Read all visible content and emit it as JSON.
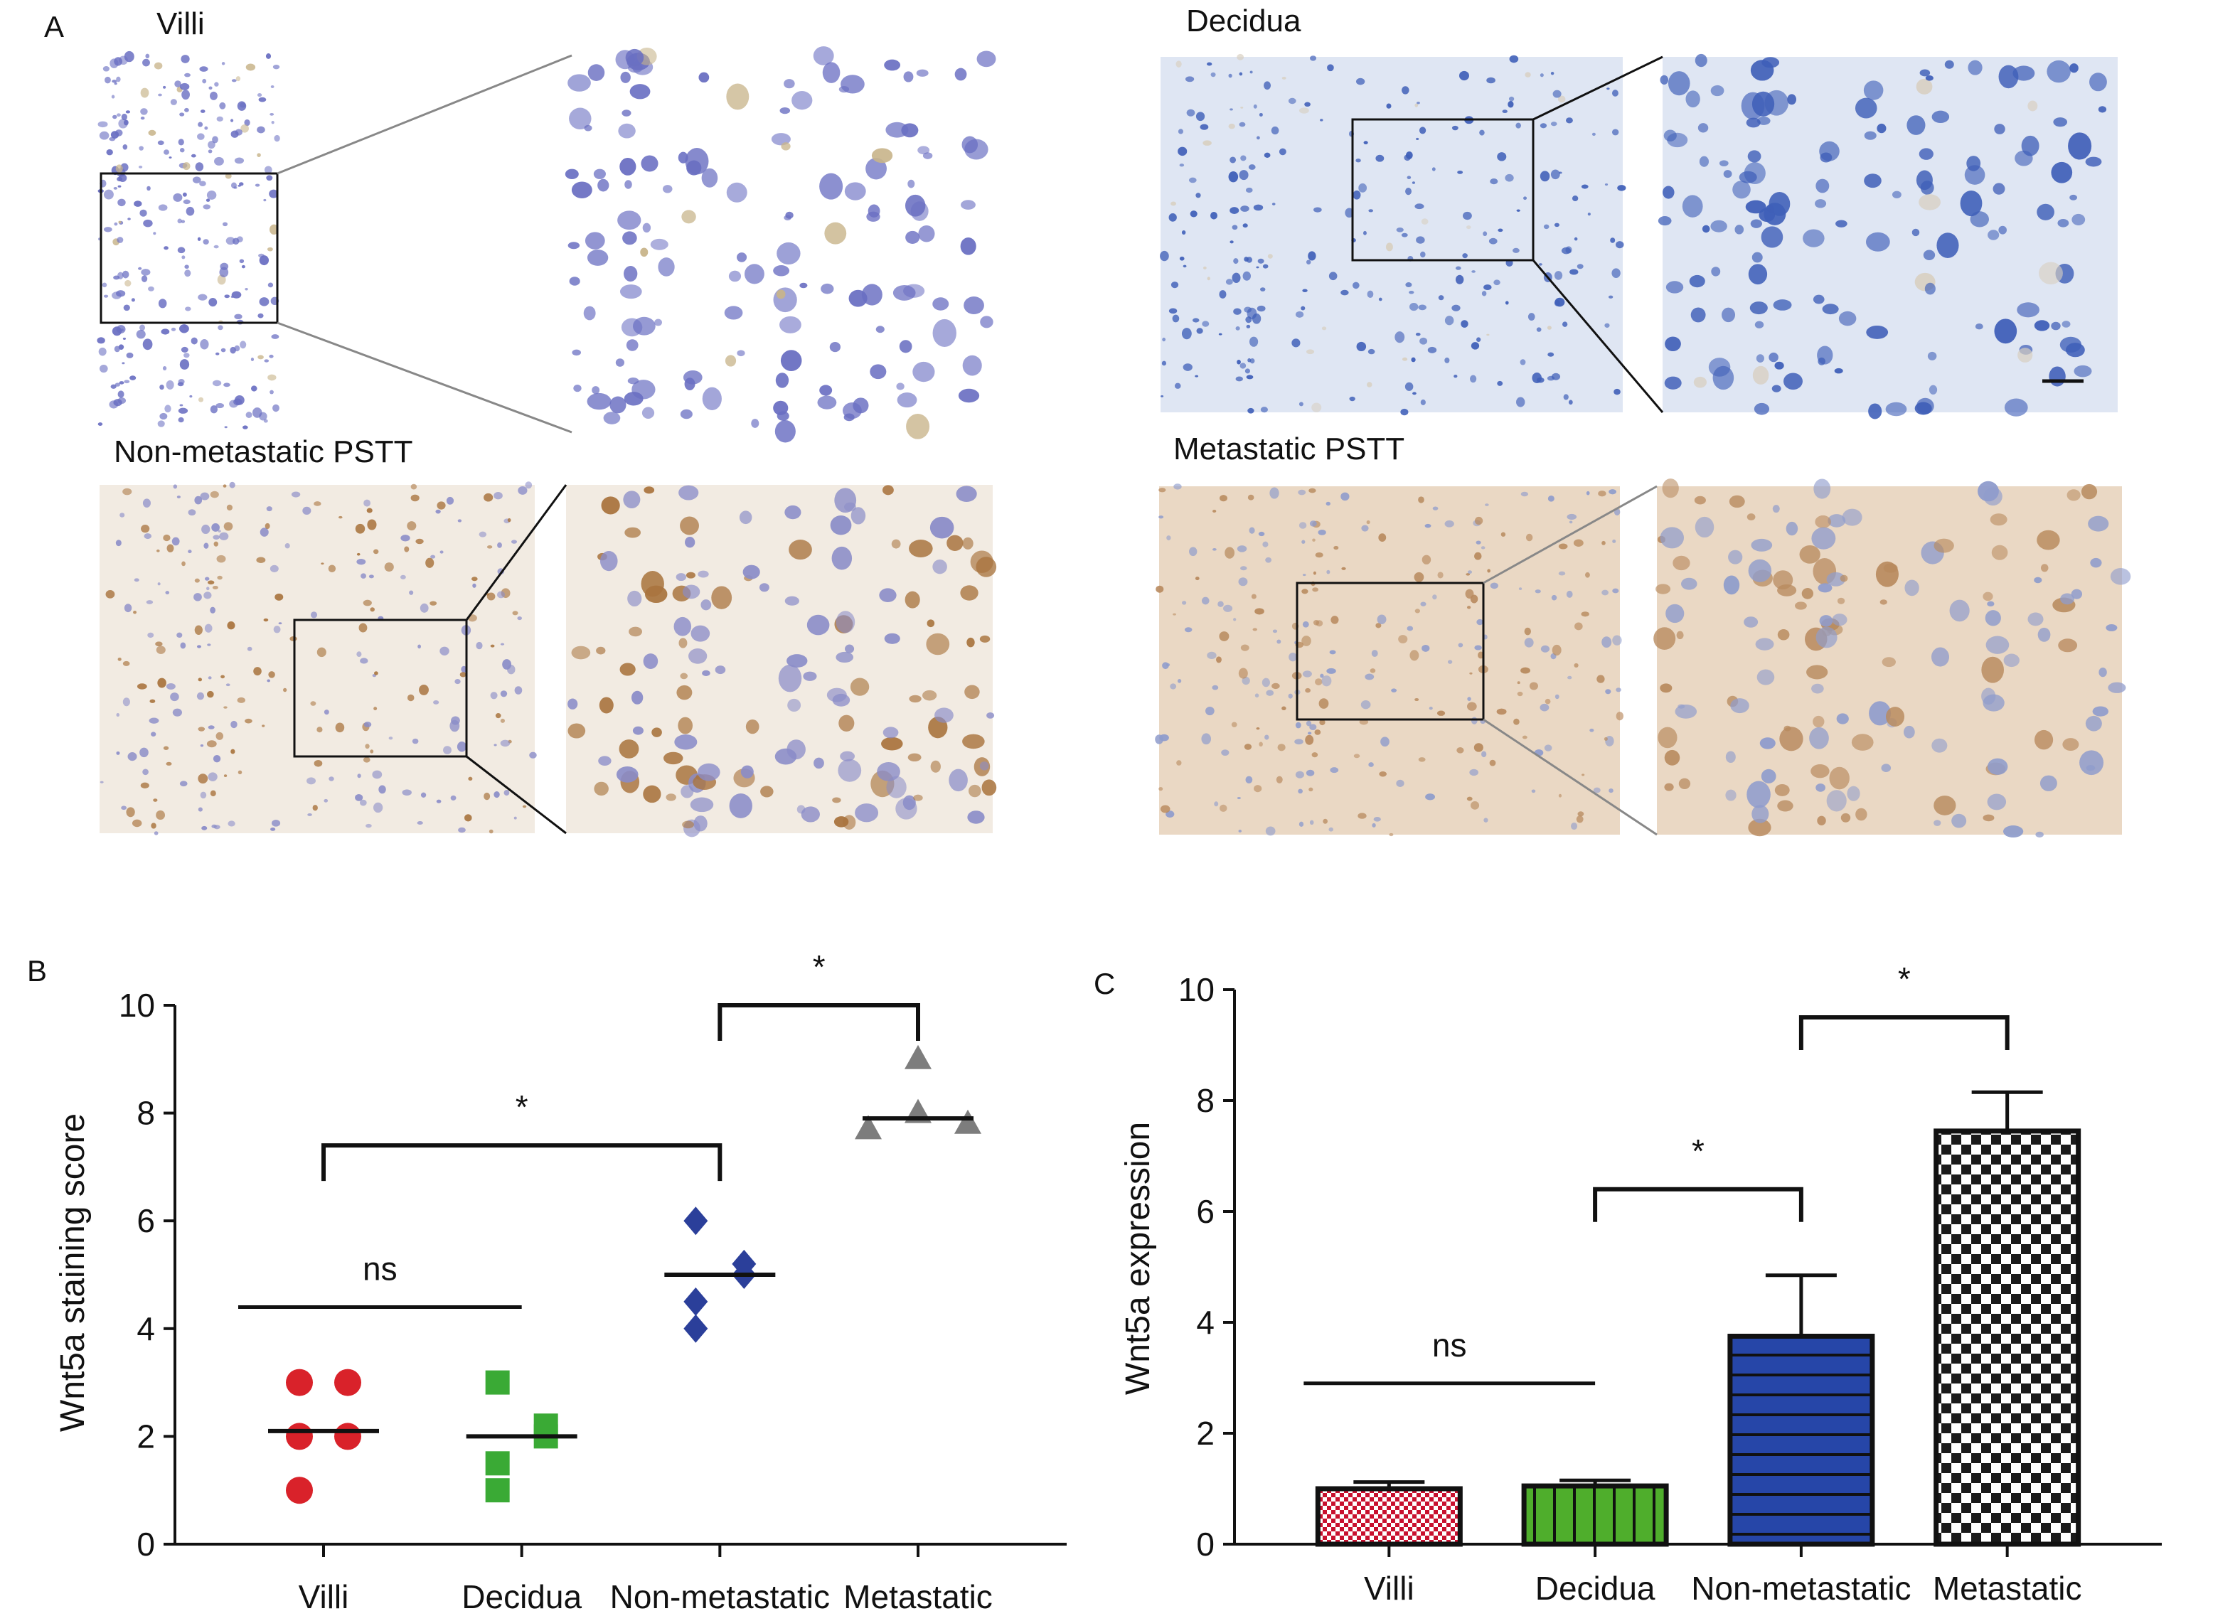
{
  "panel_a": {
    "label": "A",
    "images": [
      {
        "id": "villi",
        "title": "Villi",
        "stain": "#ffffff",
        "cells": "#6a6fc2",
        "brown": "#c8b48a"
      },
      {
        "id": "decidua",
        "title": "Decidua",
        "stain": "#dfe6f3",
        "cells": "#3f5fb8",
        "brown": "#d8cfc0"
      },
      {
        "id": "nonmeta",
        "title": "Non-metastatic PSTT",
        "stain": "#f2ebe2",
        "cells": "#8a8cc8",
        "brown": "#a9743e"
      },
      {
        "id": "meta",
        "title": "Metastatic PSTT",
        "stain": "#ead8c4",
        "cells": "#8f9ccc",
        "brown": "#b88a5e"
      }
    ]
  },
  "chart_data": [
    {
      "panel": "B",
      "type": "scatter",
      "ylabel": "Wnt5a staining score",
      "xlabel": "",
      "categories": [
        "Villi",
        "Decidua",
        "Non-metastatic",
        "Metastatic"
      ],
      "ylim": [
        0,
        10
      ],
      "yticks": [
        "0",
        "2",
        "4",
        "6",
        "8",
        "10"
      ],
      "series": [
        {
          "category": "Villi",
          "marker": "circle",
          "color": "#d9222a",
          "points": [
            3,
            3,
            2,
            2,
            1
          ],
          "median": 2.1
        },
        {
          "category": "Decidua",
          "marker": "square",
          "color": "#3aaa35",
          "points": [
            3,
            2,
            2.2,
            1.5,
            1
          ],
          "median": 2
        },
        {
          "category": "Non-metastatic",
          "marker": "diamond",
          "color": "#2b3f9a",
          "points": [
            6,
            5,
            5.2,
            4.5,
            4
          ],
          "median": 5
        },
        {
          "category": "Metastatic",
          "marker": "triangle",
          "color": "#7d7d7d",
          "points": [
            9,
            8,
            7.7,
            7.8
          ],
          "median": 7.9
        }
      ],
      "annotations": [
        {
          "text": "ns",
          "type": "line",
          "from": "Villi",
          "to": "Decidua",
          "y": 4.4
        },
        {
          "text": "*",
          "type": "bracket",
          "from": "Villi",
          "to": "Non-metastatic",
          "y": 7.4
        },
        {
          "text": "*",
          "type": "bracket",
          "from": "Non-metastatic",
          "to": "Metastatic",
          "y": 10
        }
      ],
      "grid": false
    },
    {
      "panel": "C",
      "type": "bar",
      "ylabel": "Wnt5a expression",
      "xlabel": "",
      "categories": [
        "Villi",
        "Decidua",
        "Non-metastatic",
        "Metastatic"
      ],
      "values": [
        1.0,
        1.05,
        3.75,
        7.45
      ],
      "errors": [
        0.12,
        0.1,
        1.1,
        0.7
      ],
      "colors": [
        "#c8102e",
        "#4fae2c",
        "#2646a8",
        "#1a1a1a"
      ],
      "patterns": [
        "check",
        "vstripe",
        "hstripe",
        "check"
      ],
      "ylim": [
        0,
        10
      ],
      "yticks": [
        "0",
        "2",
        "4",
        "6",
        "8",
        "10"
      ],
      "annotations": [
        {
          "text": "ns",
          "type": "line",
          "from": "Villi",
          "to": "Decidua",
          "y": 2.9
        },
        {
          "text": "*",
          "type": "bracket",
          "from": "Decidua",
          "to": "Non-metastatic",
          "y": 6.4
        },
        {
          "text": "*",
          "type": "bracket",
          "from": "Non-metastatic",
          "to": "Metastatic",
          "y": 9.5
        }
      ],
      "grid": false
    }
  ]
}
